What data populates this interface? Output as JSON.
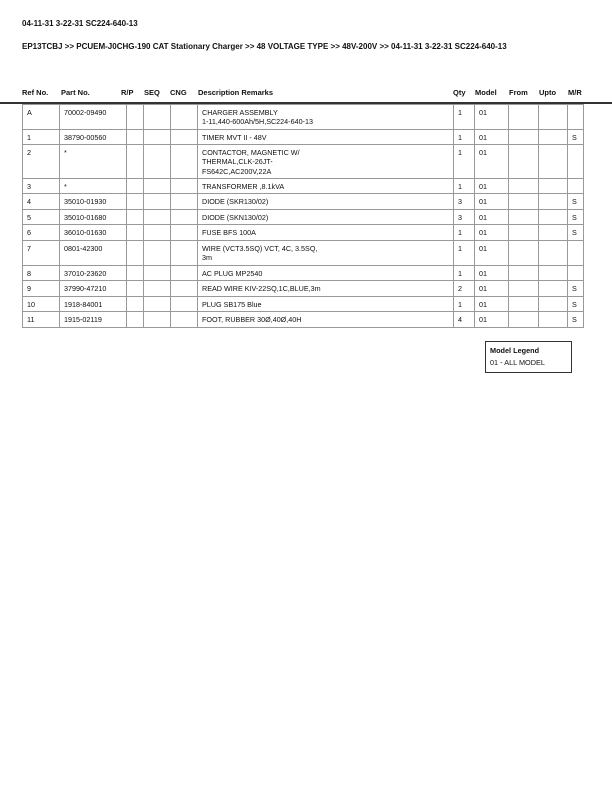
{
  "title": "04-11-31 3-22-31 SC224-640-13",
  "breadcrumb": "EP13TCBJ >> PCUEM-J0CHG-190 CAT Stationary Charger >> 48 VOLTAGE TYPE >> 48V-200V >> 04-11-31 3-22-31 SC224-640-13",
  "columns": {
    "ref": "Ref No.",
    "part": "Part No.",
    "rp": "R/P",
    "seq": "SEQ",
    "cng": "CNG",
    "desc": "Description Remarks",
    "qty": "Qty",
    "model": "Model",
    "from": "From",
    "upto": "Upto",
    "mr": "M/R"
  },
  "rows": [
    {
      "ref": "A",
      "part": "70002-09490",
      "desc": "CHARGER ASSEMBLY\n1-11,440-600Ah/5H,SC224-640-13",
      "qty": "1",
      "model": "01",
      "mr": ""
    },
    {
      "ref": "1",
      "part": "38790-00560",
      "desc": "TIMER MVT II - 48V",
      "qty": "1",
      "model": "01",
      "mr": "S"
    },
    {
      "ref": "2",
      "part": "*",
      "desc": " CONTACTOR, MAGNETIC W/\nTHERMAL,CLK-26JT-\nFS642C,AC200V,22A",
      "qty": "1",
      "model": "01",
      "mr": ""
    },
    {
      "ref": "3",
      "part": "*",
      "desc": " TRANSFORMER ,8.1kVA",
      "qty": "1",
      "model": "01",
      "mr": ""
    },
    {
      "ref": "4",
      "part": "35010-01930",
      "desc": "DIODE (SKR130/02)",
      "qty": "3",
      "model": "01",
      "mr": "S"
    },
    {
      "ref": "5",
      "part": "35010-01680",
      "desc": "DIODE (SKN130/02)",
      "qty": "3",
      "model": "01",
      "mr": "S"
    },
    {
      "ref": "6",
      "part": "36010-01630",
      "desc": "FUSE BFS 100A",
      "qty": "1",
      "model": "01",
      "mr": "S"
    },
    {
      "ref": "7",
      "part": "0801-42300",
      "desc": "WIRE (VCT3.5SQ) VCT, 4C, 3.5SQ,\n3m",
      "qty": "1",
      "model": "01",
      "mr": ""
    },
    {
      "ref": "8",
      "part": "37010-23620",
      "desc": "AC PLUG MP2540",
      "qty": "1",
      "model": "01",
      "mr": ""
    },
    {
      "ref": "9",
      "part": "37990-47210",
      "desc": "READ WIRE KIV-22SQ,1C,BLUE,3m",
      "qty": "2",
      "model": "01",
      "mr": "S"
    },
    {
      "ref": "10",
      "part": "1918-84001",
      "desc": "PLUG SB175 Blue",
      "qty": "1",
      "model": "01",
      "mr": "S"
    },
    {
      "ref": "11",
      "part": "1915-02119",
      "desc": "FOOT, RUBBER 30Ø,40Ø,40H",
      "qty": "4",
      "model": "01",
      "mr": "S"
    }
  ],
  "legend": {
    "title": "Model Legend",
    "entry": "01 - ALL MODEL"
  }
}
